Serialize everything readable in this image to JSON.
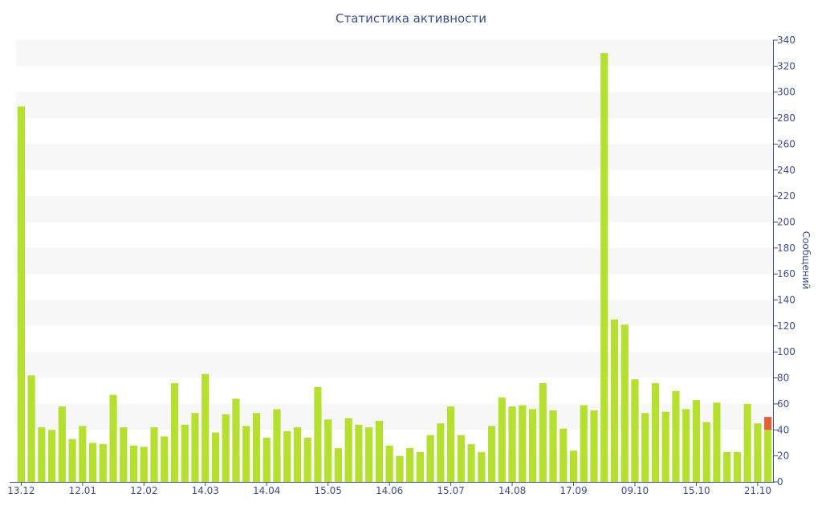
{
  "chart_data": {
    "type": "bar",
    "title": "Статистика активности",
    "xlabel": "",
    "ylabel": "Сообщений",
    "ylim": [
      0,
      340
    ],
    "y_ticks": [
      0,
      20,
      40,
      60,
      80,
      100,
      120,
      140,
      160,
      180,
      200,
      220,
      240,
      260,
      280,
      300,
      320,
      340
    ],
    "y_axis_side": "right",
    "grid": "alternating horizontal bands",
    "x_tick_labels": [
      "13.12",
      "12.01",
      "12.02",
      "14.03",
      "14.04",
      "15.05",
      "14.06",
      "15.07",
      "14.08",
      "17.09",
      "09.10",
      "15.10",
      "21.10"
    ],
    "x_tick_positions": [
      0,
      6,
      12,
      18,
      24,
      30,
      36,
      42,
      48,
      54,
      60,
      66,
      72
    ],
    "values": [
      289,
      82,
      42,
      40,
      58,
      33,
      43,
      30,
      29,
      67,
      42,
      28,
      27,
      42,
      35,
      76,
      44,
      53,
      83,
      38,
      52,
      64,
      43,
      53,
      34,
      56,
      39,
      42,
      34,
      73,
      48,
      26,
      49,
      44,
      42,
      47,
      28,
      20,
      26,
      23,
      36,
      45,
      58,
      36,
      29,
      23,
      43,
      65,
      58,
      59,
      56,
      76,
      55,
      41,
      24,
      59,
      55,
      330,
      125,
      121,
      79,
      53,
      76,
      54,
      70,
      56,
      63,
      46,
      61,
      23,
      23,
      60,
      45,
      50
    ],
    "highlight": {
      "index": 73,
      "total": 50,
      "base": 40
    },
    "colors": {
      "bar": "#b5e030",
      "highlight": "#e0603a",
      "band": "#f7f7f7",
      "axis": "#3e4f8c"
    }
  }
}
